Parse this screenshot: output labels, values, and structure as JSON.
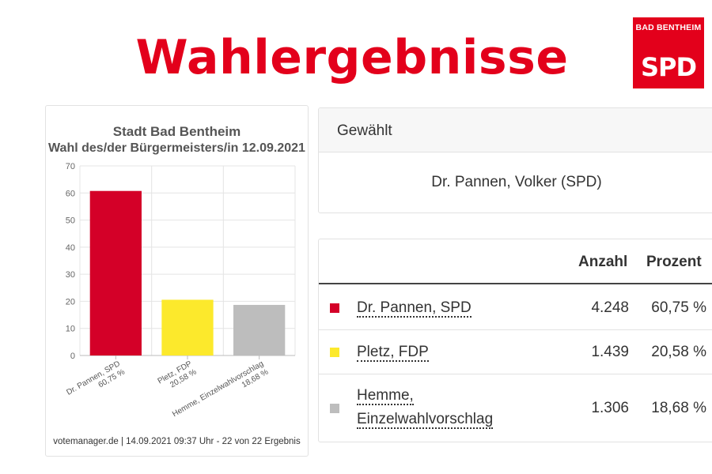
{
  "headline": "Wahlergebnisse",
  "logo": {
    "top_text": "BAD BENTHEIM",
    "main_text": "SPD",
    "color": "#e3001b"
  },
  "chart_data": {
    "type": "bar",
    "title": "Stadt Bad Bentheim",
    "subtitle": "Wahl des/der Bürgermeisters/in 12.09.2021",
    "categories": [
      "Dr. Pannen, SPD",
      "Pletz, FDP",
      "Hemme, Einzelwahlvorschlag"
    ],
    "category_labels": [
      [
        "Dr. Pannen, SPD",
        "60,75 %"
      ],
      [
        "Pletz, FDP",
        "20,58 %"
      ],
      [
        "Hemme, Einzelwahlvorschlag",
        "18,68 %"
      ]
    ],
    "values": [
      60.75,
      20.58,
      18.68
    ],
    "colors": [
      "#d40028",
      "#fce92c",
      "#bdbdbd"
    ],
    "ylim": [
      0,
      70
    ],
    "yticks": [
      "0",
      "10",
      "20",
      "30",
      "40",
      "50",
      "60",
      "70"
    ],
    "grid": true,
    "xlabel": "",
    "ylabel": "",
    "source": "votemanager.de | 14.09.2021 09:37 Uhr - 22 von 22 Ergebnis"
  },
  "elected": {
    "header": "Gewählt",
    "name": "Dr. Pannen, Volker (SPD)"
  },
  "results": {
    "headers": {
      "anzahl": "Anzahl",
      "prozent": "Prozent"
    },
    "rows": [
      {
        "name_lines": [
          "Dr. Pannen, SPD"
        ],
        "anzahl": "4.248",
        "prozent": "60,75 %",
        "color": "#d40028"
      },
      {
        "name_lines": [
          "Pletz, FDP"
        ],
        "anzahl": "1.439",
        "prozent": "20,58 %",
        "color": "#fce92c"
      },
      {
        "name_lines": [
          "Hemme,",
          "Einzelwahlvorschlag"
        ],
        "anzahl": "1.306",
        "prozent": "18,68 %",
        "color": "#bdbdbd"
      }
    ]
  }
}
